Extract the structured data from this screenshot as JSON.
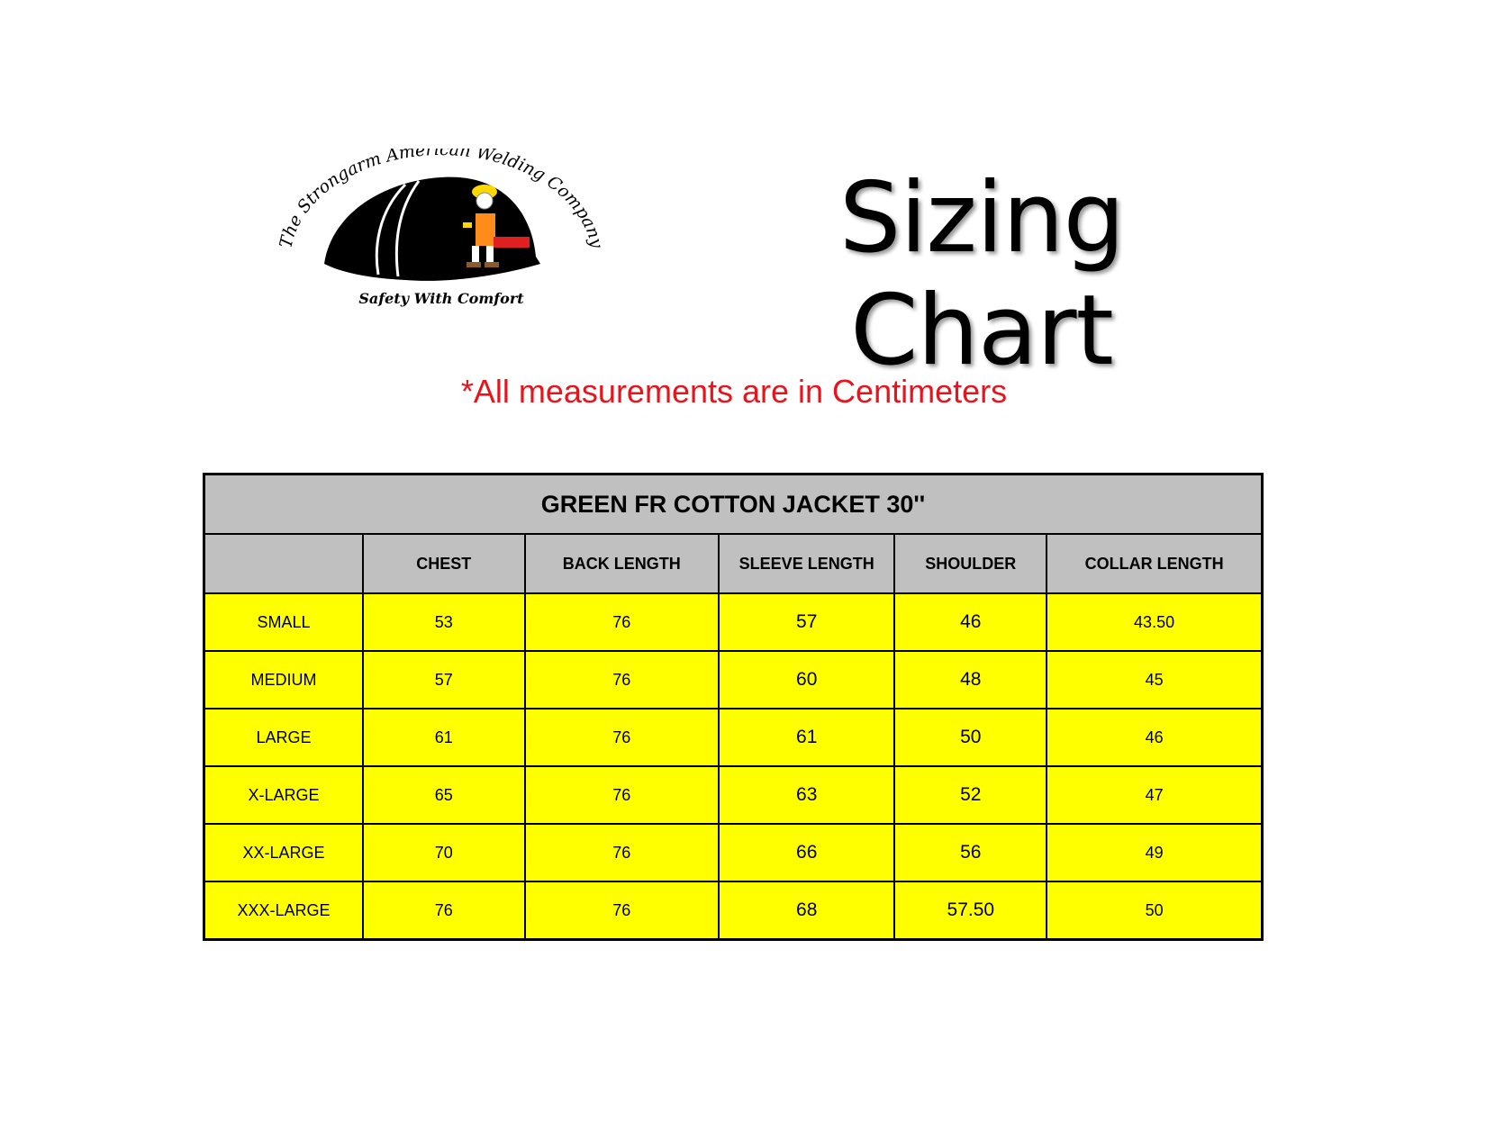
{
  "logo": {
    "arc_text": "The Strongarm American Welding Company",
    "tagline": "Safety With Comfort"
  },
  "title": "Sizing Chart",
  "note": "*All measurements  are in Centimeters",
  "table": {
    "caption": "GREEN FR COTTON JACKET 30''",
    "columns": [
      "",
      "CHEST",
      "BACK LENGTH",
      "SLEEVE LENGTH",
      "SHOULDER",
      "COLLAR LENGTH"
    ],
    "rows": [
      [
        "SMALL",
        "53",
        "76",
        "57",
        "46",
        "43.50"
      ],
      [
        "MEDIUM",
        "57",
        "76",
        "60",
        "48",
        "45"
      ],
      [
        "LARGE",
        "61",
        "76",
        "61",
        "50",
        "46"
      ],
      [
        "X-LARGE",
        "65",
        "76",
        "63",
        "52",
        "47"
      ],
      [
        "XX-LARGE",
        "70",
        "76",
        "66",
        "56",
        "49"
      ],
      [
        "XXX-LARGE",
        "76",
        "76",
        "68",
        "57.50",
        "50"
      ]
    ]
  },
  "colors": {
    "header_bg": "#c0c0c0",
    "row_bg": "#ffff00",
    "note": "#e8141c"
  }
}
